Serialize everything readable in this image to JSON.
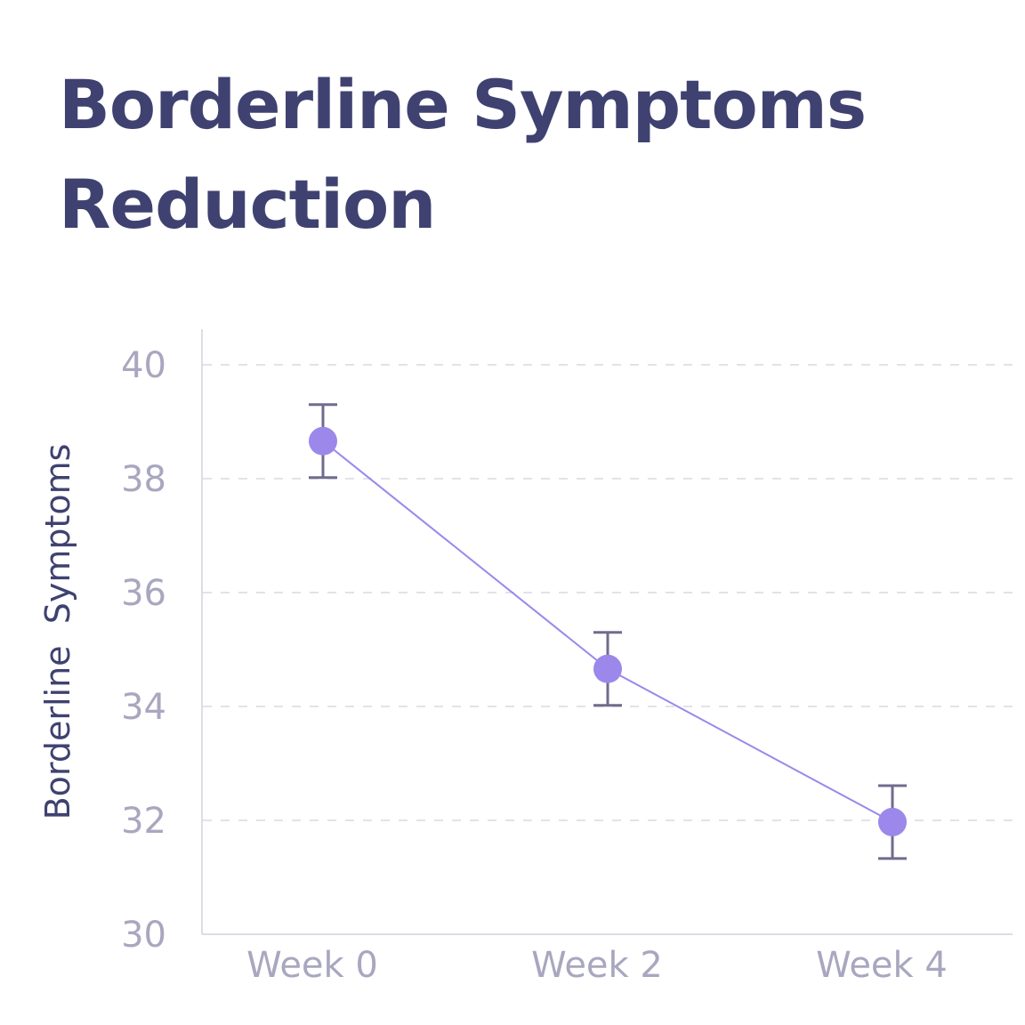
{
  "chart_data": {
    "type": "line",
    "title": "Borderline Symptoms Reduction",
    "xlabel": "",
    "ylabel": "Borderline  Symptoms",
    "categories": [
      "Week 0",
      "Week 2",
      "Week 4"
    ],
    "series": [
      {
        "name": "Borderline Symptoms",
        "values": [
          38.66,
          34.66,
          31.97
        ],
        "error": [
          0.64,
          0.64,
          0.64
        ],
        "color": "#9b88ea"
      }
    ],
    "ylim": [
      30,
      40
    ],
    "yticks": [
      30,
      32,
      34,
      36,
      38,
      40
    ],
    "grid": true,
    "colors": {
      "title": "#3f4270",
      "errorbar": "#6f6c8e",
      "tick": "#a9a7bf",
      "grid": "#e3e2ea",
      "axis": "#dddce6"
    }
  }
}
